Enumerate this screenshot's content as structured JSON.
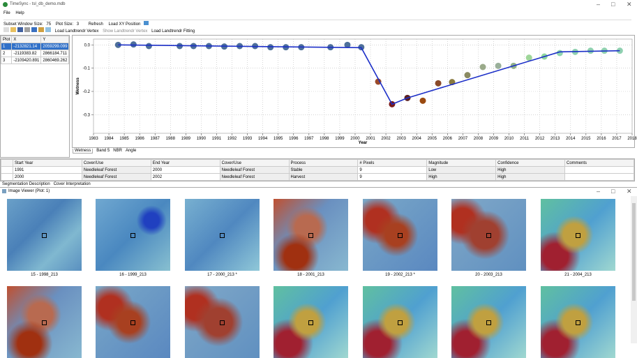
{
  "window": {
    "title": "TimeSync - tsl_db_demo.mdb"
  },
  "menu": [
    "File",
    "Help"
  ],
  "toolbar": {
    "subset_label": "Subset Window Size:",
    "subset_value": "75",
    "plot_label": "Plot Size:",
    "plot_value": "3",
    "refresh": "Refresh",
    "load_xy": "Load XY Position"
  },
  "toolbar2": [
    "Load Landtrendr Vertex",
    "Show Landtrendr Vertex",
    "Load Landtrendr Fitting"
  ],
  "plot_table": {
    "headers": [
      "Plot",
      "X",
      "Y"
    ],
    "rows": [
      [
        "1",
        "-2132821.14",
        "2059299.099"
      ],
      [
        "2",
        "-2119383.82",
        "2866184.711"
      ],
      [
        "3",
        "-2109420.891",
        "2860469.262"
      ]
    ]
  },
  "chart_data": {
    "type": "scatter",
    "xlabel": "Year",
    "ylabel": "Wetness",
    "xlim": [
      1983,
      2018
    ],
    "xticks": [
      1983,
      1984,
      1985,
      1986,
      1987,
      1988,
      1989,
      1990,
      1991,
      1992,
      1993,
      1994,
      1995,
      1996,
      1997,
      1998,
      1999,
      2000,
      2001,
      2002,
      2003,
      2004,
      2005,
      2006,
      2007,
      2008,
      2009,
      2010,
      2011,
      2012,
      2013,
      2014,
      2015,
      2016,
      2017,
      2018
    ],
    "ylim": [
      -0.38,
      0.025
    ],
    "yticks": [
      {
        "value": 0,
        "label": "0.0"
      },
      -0.1,
      -0.2,
      -0.3
    ],
    "grid": true,
    "series": [
      {
        "x": [
          1984.6,
          1985.6,
          1986.6,
          1988.6,
          1989.5,
          1990.5,
          1991.5,
          1992.5,
          1993.5,
          1994.5,
          1995.5,
          1996.5,
          1998.4,
          1999.5,
          2000.4,
          2001.5,
          2002.4,
          2003.4,
          2004.4,
          2005.4,
          2006.3,
          2007.3,
          2008.3,
          2009.3,
          2010.3,
          2011.3,
          2012.3,
          2013.3,
          2014.3,
          2015.3,
          2016.2,
          2017.2
        ],
        "values": [
          0,
          0.002,
          -0.005,
          -0.005,
          -0.005,
          -0.005,
          -0.007,
          -0.005,
          -0.005,
          -0.01,
          -0.01,
          -0.01,
          -0.01,
          0,
          -0.01,
          -0.158,
          -0.255,
          -0.228,
          -0.24,
          -0.165,
          -0.16,
          -0.13,
          -0.095,
          -0.09,
          -0.09,
          -0.055,
          -0.05,
          -0.035,
          -0.03,
          -0.025,
          -0.025,
          -0.025
        ],
        "colors": [
          "#4d6f9a",
          "#4d6f9a",
          "#4d6f9a",
          "#4d6f9a",
          "#4d6f9a",
          "#4d6f9a",
          "#4d6f9a",
          "#4d6f9a",
          "#4d6f9a",
          "#4d6f9a",
          "#4d6f9a",
          "#4d6f9a",
          "#4d6f9a",
          "#4d6f9a",
          "#4d6f9a",
          "#9a4a2a",
          "#7a1a1a",
          "#5a2020",
          "#9a4a10",
          "#8a4a28",
          "#8a7a40",
          "#8a8a60",
          "#9aaa8a",
          "#9ab09a",
          "#8fb08a",
          "#9fd69a",
          "#8fd6a0",
          "#8fd6b0",
          "#8fd0b0",
          "#8fd0b0",
          "#8fd0b0",
          "#8fd0b0"
        ]
      },
      {
        "type": "line",
        "color": "#1c2fc8",
        "x": [
          1984.6,
          2000.4,
          2002.4,
          2003.4,
          2013.3,
          2017.2
        ],
        "values": [
          0,
          -0.012,
          -0.255,
          -0.228,
          -0.03,
          -0.025
        ]
      }
    ]
  },
  "chart_tabs": [
    "Wetness",
    "Band 5",
    "NBR",
    "Angle"
  ],
  "interp": {
    "headers": [
      "Start Year",
      "Cover/Use",
      "End Year",
      "Cover/Use",
      "Process",
      "# Pixels",
      "Magnitude",
      "Confidence",
      "Comments"
    ],
    "rows": [
      [
        "1991",
        "Needleleaf Forest",
        "2000",
        "Needleleaf Forest",
        "Stable",
        "9",
        "Low",
        "High",
        ""
      ],
      [
        "2000",
        "Needleleaf Forest",
        "2002",
        "Needleleaf Forest",
        "Harvest",
        "9",
        "High",
        "High",
        ""
      ]
    ]
  },
  "interp_tabs": [
    "Segmentation Description",
    "Cover Interpretation"
  ],
  "image_viewer": {
    "title": "Image Viewer (Plot: 1)",
    "captions": [
      "15 - 1998_213",
      "16 - 1999_213",
      "17 - 2000_213 *",
      "18 - 2001_213",
      "19 - 2002_213 *",
      "20 - 2003_213",
      "21 - 2004_213"
    ]
  }
}
